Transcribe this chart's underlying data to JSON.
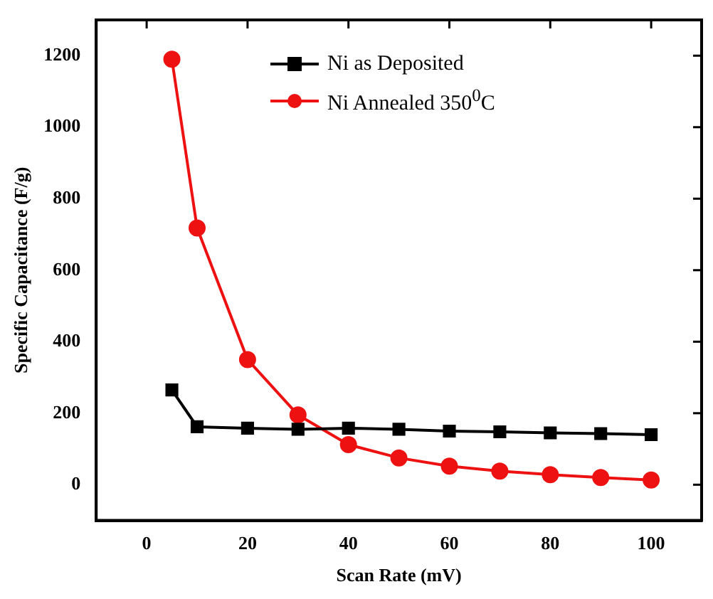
{
  "chart_data": {
    "type": "line",
    "xlabel": "Scan Rate (mV)",
    "ylabel": "Specific Capacitance (F/g)",
    "x": [
      5,
      10,
      20,
      30,
      40,
      50,
      60,
      70,
      80,
      90,
      100
    ],
    "series": [
      {
        "name": "Ni as Deposited",
        "color": "#000000",
        "marker": "square",
        "values": [
          265,
          162,
          158,
          155,
          158,
          155,
          150,
          148,
          145,
          143,
          140
        ]
      },
      {
        "name": "Ni Annealed 350$^{0}$C",
        "color": "#ee1111",
        "marker": "circle",
        "values": [
          1190,
          718,
          350,
          195,
          112,
          75,
          52,
          38,
          28,
          20,
          13
        ]
      }
    ],
    "xlim": [
      -10,
      110
    ],
    "xticks": [
      0,
      20,
      40,
      60,
      80,
      100
    ],
    "ylim": [
      -100,
      1300
    ],
    "yticks": [
      0,
      200,
      400,
      600,
      800,
      1000,
      1200
    ],
    "grid": false,
    "legend": "top left",
    "line_style": "solid"
  }
}
